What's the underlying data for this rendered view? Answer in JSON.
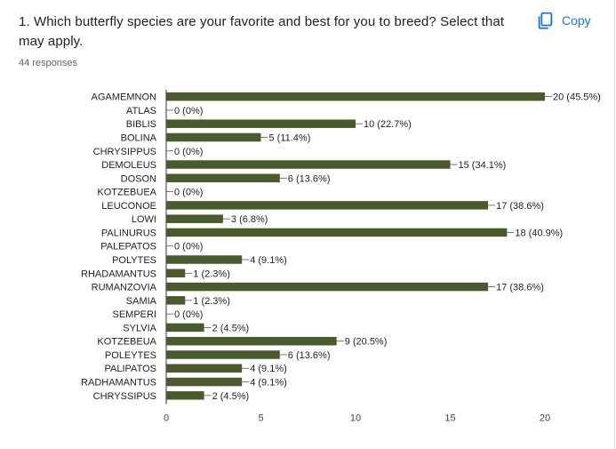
{
  "question": {
    "title": "1. Which butterfly species are your favorite and best for you to breed? Select that may apply.",
    "responses_label": "44 responses"
  },
  "copy_button": {
    "label": "Copy",
    "icon": "copy-icon"
  },
  "colors": {
    "bar": "#4a5a2f",
    "link": "#1a73e8",
    "text": "#202124",
    "axis": "#666666"
  },
  "chart_data": {
    "type": "bar",
    "orientation": "horizontal",
    "categories": [
      "AGAMEMNON",
      "ATLAS",
      "BIBLIS",
      "BOLINA",
      "CHRYSIPPUS",
      "DEMOLEUS",
      "DOSON",
      "KOTZEBUEA",
      "LEUCONOE",
      "LOWI",
      "PALINURUS",
      "PALEPATOS",
      "POLYTES",
      "RHADAMANTUS",
      "RUMANZOVIA",
      "SAMIA",
      "SEMPERI",
      "SYLVIA",
      "KOTZEBEUA",
      "POLEYTES",
      "PALIPATOS",
      "RADHAMANTUS",
      "CHRYSSIPUS"
    ],
    "values": [
      20,
      0,
      10,
      5,
      0,
      15,
      6,
      0,
      17,
      3,
      18,
      0,
      4,
      1,
      17,
      1,
      0,
      2,
      9,
      6,
      4,
      4,
      2
    ],
    "data_labels": [
      "20 (45.5%)",
      "0 (0%)",
      "10 (22.7%)",
      "5 (11.4%)",
      "0 (0%)",
      "15 (34.1%)",
      "6 (13.6%)",
      "0 (0%)",
      "17 (38.6%)",
      "3 (6.8%)",
      "18 (40.9%)",
      "0 (0%)",
      "4 (9.1%)",
      "1 (2.3%)",
      "17 (38.6%)",
      "1 (2.3%)",
      "0 (0%)",
      "2 (4.5%)",
      "9 (20.5%)",
      "6 (13.6%)",
      "4 (9.1%)",
      "4 (9.1%)",
      "2 (4.5%)"
    ],
    "xlim": [
      0,
      20
    ],
    "xticks": [
      0,
      5,
      10,
      15,
      20
    ],
    "grid": false,
    "legend": "none"
  }
}
